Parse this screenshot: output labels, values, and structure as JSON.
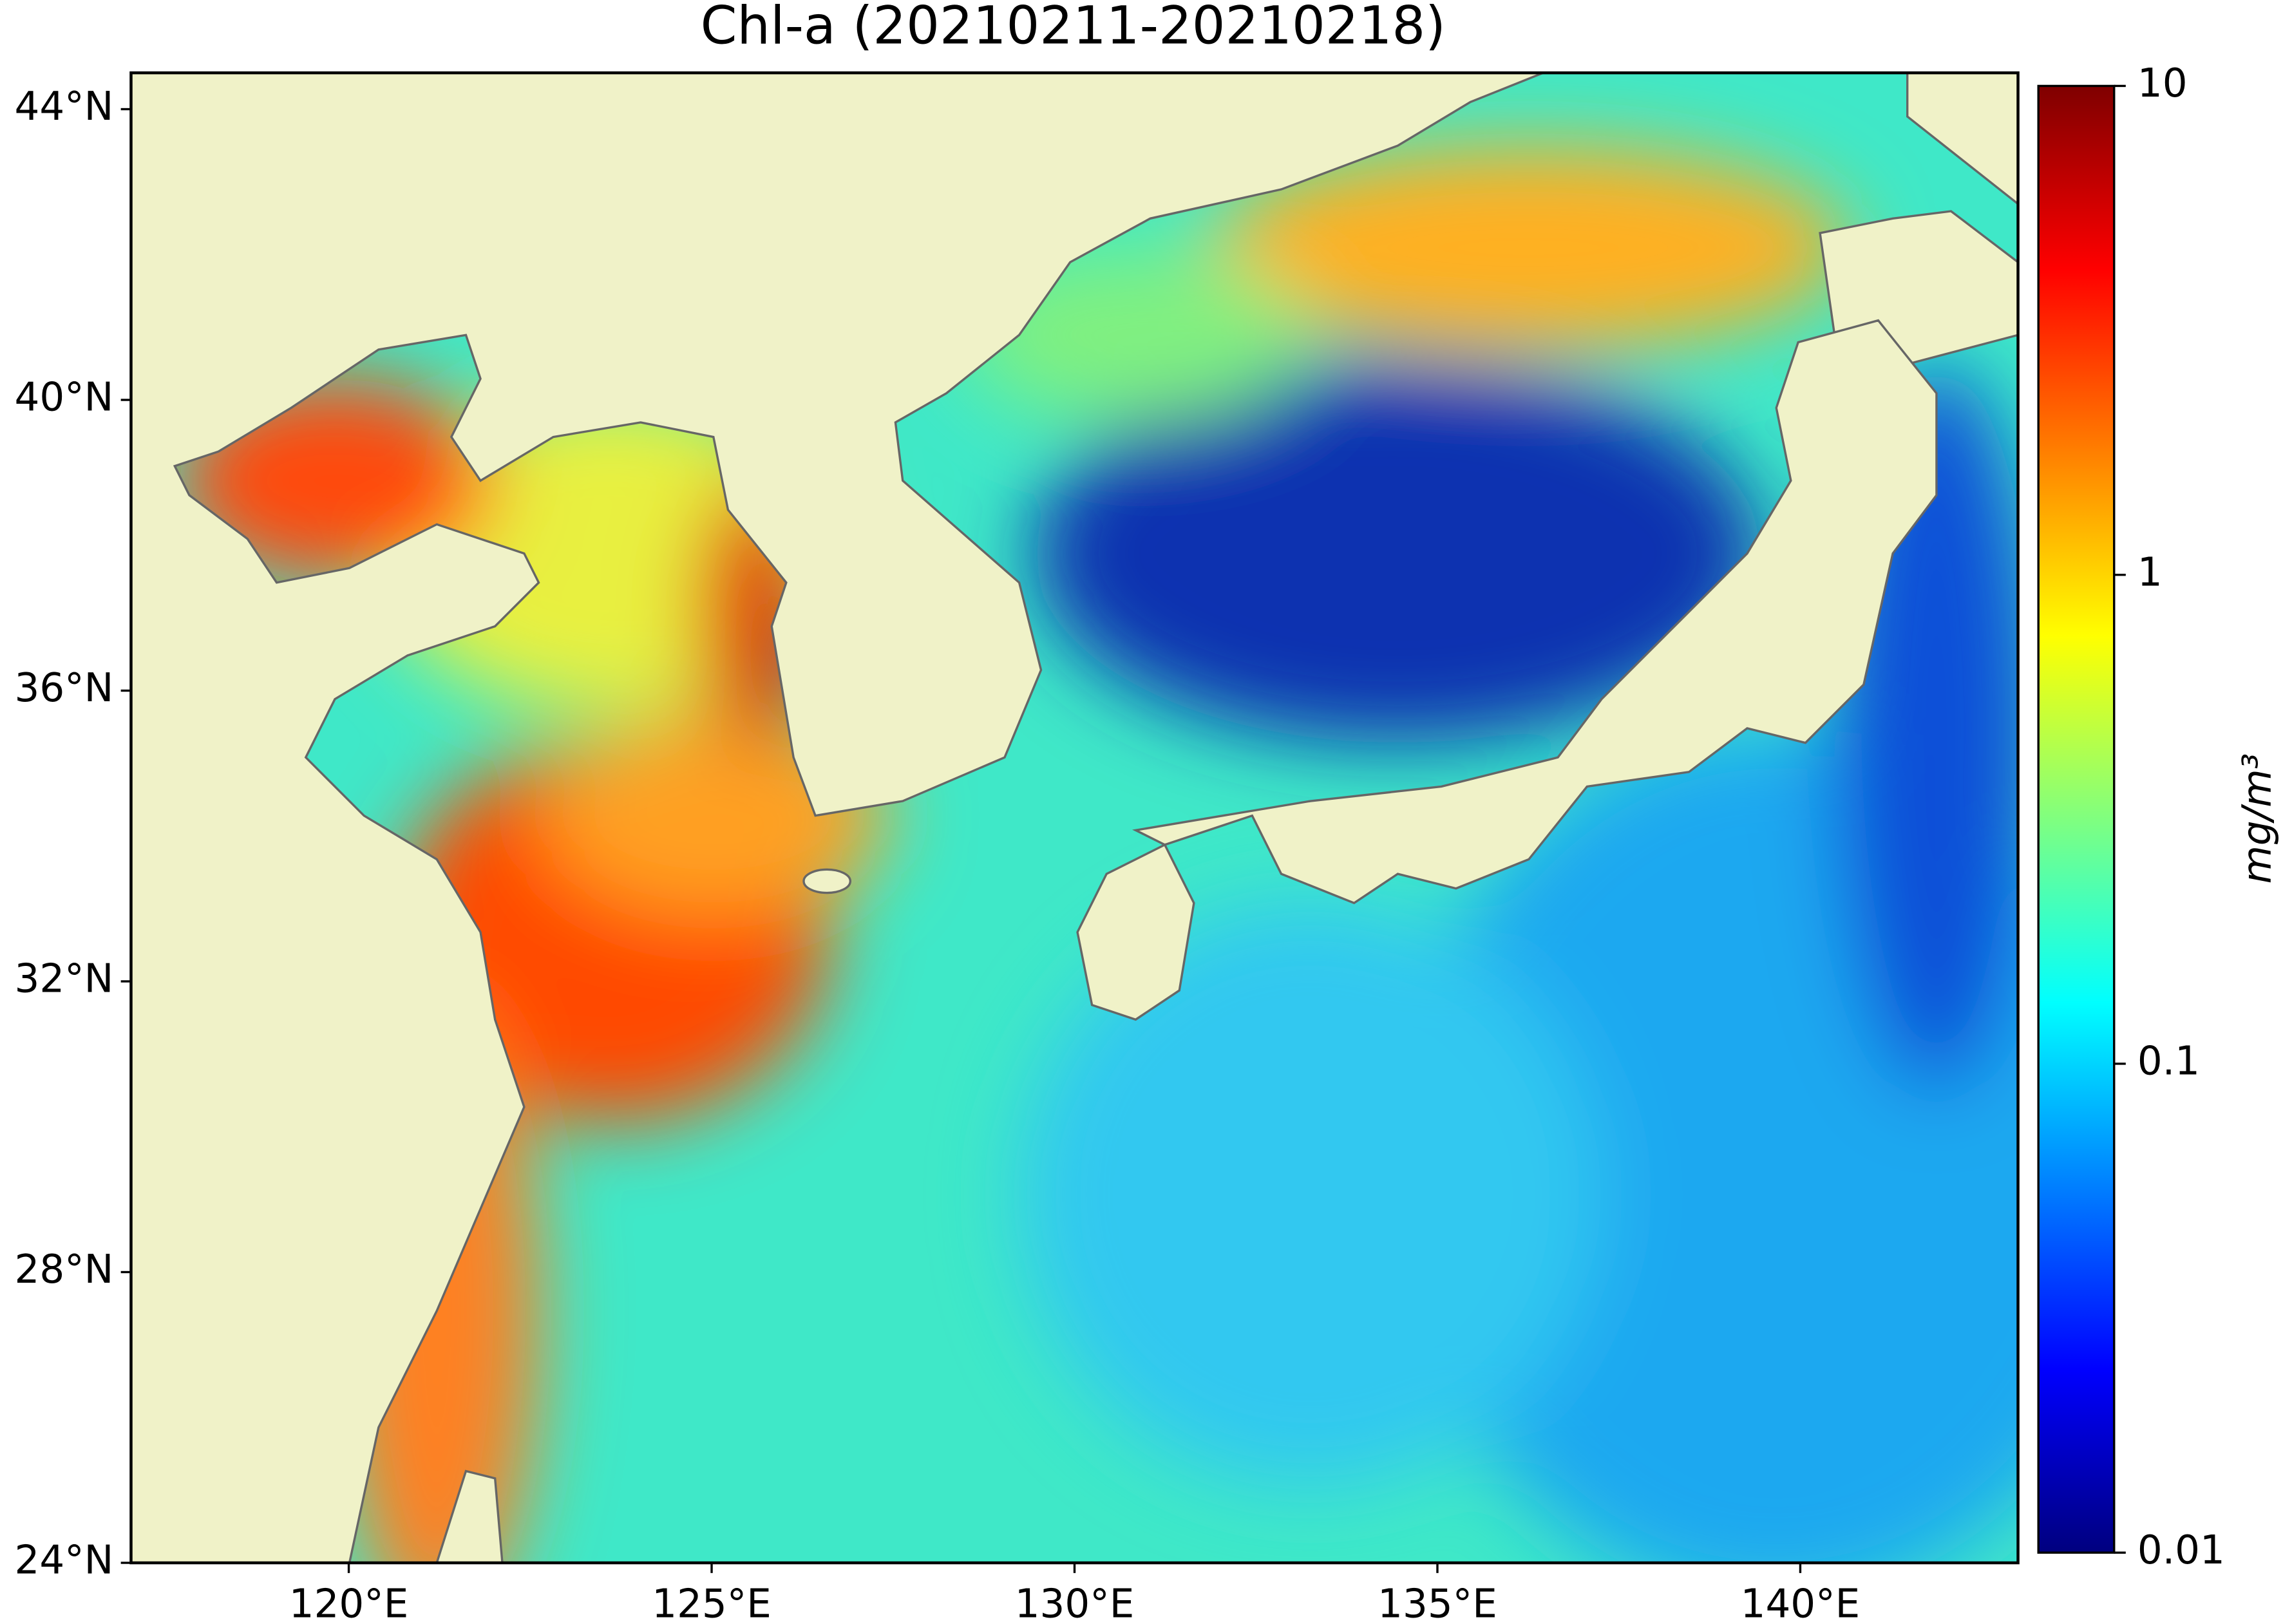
{
  "chart_data": {
    "type": "map",
    "title": "Chl-a (20210211-20210218)",
    "xlim": [
      117,
      143
    ],
    "xticks": [
      {
        "value": 120,
        "label": "120°E"
      },
      {
        "value": 125,
        "label": "125°E"
      },
      {
        "value": 130,
        "label": "130°E"
      },
      {
        "value": 135,
        "label": "135°E"
      },
      {
        "value": 140,
        "label": "140°E"
      }
    ],
    "ylim": [
      24,
      44.5
    ],
    "yticks": [
      {
        "value": 24,
        "label": "24°N"
      },
      {
        "value": 28,
        "label": "28°N"
      },
      {
        "value": 32,
        "label": "32°N"
      },
      {
        "value": 36,
        "label": "36°N"
      },
      {
        "value": 40,
        "label": "40°N"
      },
      {
        "value": 44,
        "label": "44°N"
      }
    ],
    "colorbar": {
      "label": "mg/m³",
      "scale": "log",
      "lim": [
        0.01,
        10
      ],
      "ticks": [
        0.01,
        0.1,
        1,
        10
      ]
    }
  }
}
